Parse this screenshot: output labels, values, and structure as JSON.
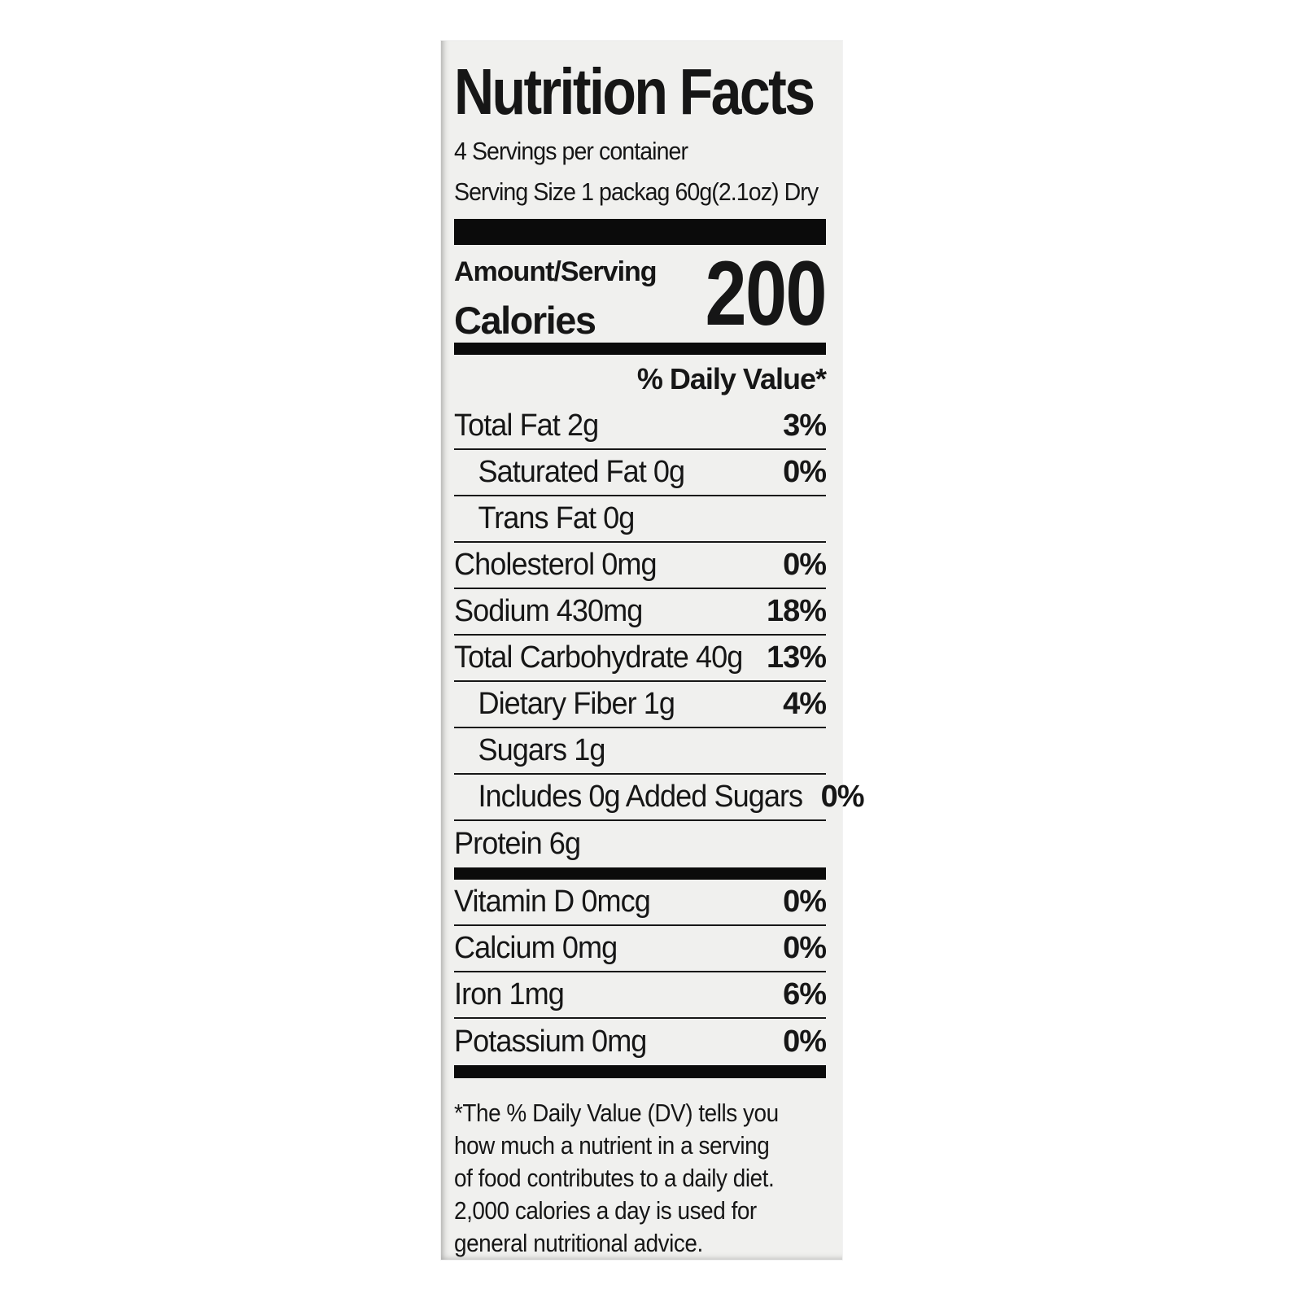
{
  "colors": {
    "label_bg": "#f0f0ee",
    "ink": "#161616",
    "bar": "#0b0b0b"
  },
  "label": {
    "title": "Nutrition Facts",
    "servings_per_container": "4 Servings per container",
    "serving_size": "Serving Size 1 packag 60g(2.1oz) Dry",
    "amount_per_serving_label": "Amount/Serving",
    "calories_label": "Calories",
    "calories_value": "200",
    "daily_value_header": "% Daily Value*",
    "nutrient_rows": [
      {
        "name": "Total Fat 2g",
        "dv": "3%",
        "indent": 0
      },
      {
        "name": "Saturated Fat 0g",
        "dv": "0%",
        "indent": 1
      },
      {
        "name": "Trans Fat 0g",
        "dv": "",
        "indent": 1
      },
      {
        "name": "Cholesterol 0mg",
        "dv": "0%",
        "indent": 0
      },
      {
        "name": "Sodium 430mg",
        "dv": "18%",
        "indent": 0
      },
      {
        "name": "Total Carbohydrate 40g",
        "dv": "13%",
        "indent": 0
      },
      {
        "name": "Dietary Fiber 1g",
        "dv": "4%",
        "indent": 1
      },
      {
        "name": "Sugars 1g",
        "dv": "",
        "indent": 1
      },
      {
        "name": "Includes 0g Added Sugars",
        "dv": "0%",
        "indent": 1
      },
      {
        "name": "Protein 6g",
        "dv": "",
        "indent": 0
      }
    ],
    "micronutrient_rows": [
      {
        "name": "Vitamin D 0mcg",
        "dv": "0%"
      },
      {
        "name": "Calcium 0mg",
        "dv": "0%"
      },
      {
        "name": "Iron 1mg",
        "dv": "6%"
      },
      {
        "name": "Potassium 0mg",
        "dv": "0%"
      }
    ],
    "footnote_lines": [
      "*The % Daily Value (DV) tells you",
      "how much a nutrient in a serving",
      "of food contributes to a daily diet.",
      "2,000 calories a day is used for",
      "general nutritional advice."
    ]
  }
}
